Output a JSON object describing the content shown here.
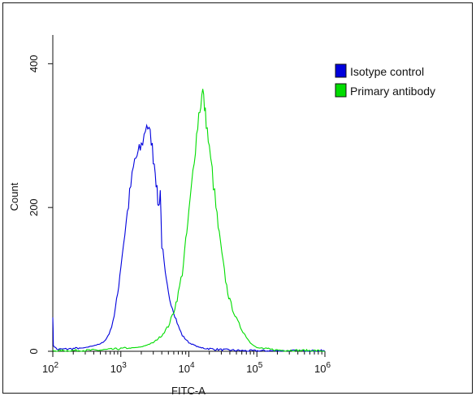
{
  "chart_data": {
    "type": "line",
    "title": "",
    "xlabel": "FITC-A",
    "ylabel": "Count",
    "x_scale": "log",
    "xlim": [
      100,
      1000000
    ],
    "ylim": [
      0,
      440
    ],
    "x_ticks": [
      {
        "value": 100,
        "base": "10",
        "exp": "2"
      },
      {
        "value": 1000,
        "base": "10",
        "exp": "3"
      },
      {
        "value": 10000,
        "base": "10",
        "exp": "4"
      },
      {
        "value": 100000,
        "base": "10",
        "exp": "5"
      },
      {
        "value": 1000000,
        "base": "10",
        "exp": "6"
      }
    ],
    "y_ticks": [
      {
        "value": 0,
        "label": "0"
      },
      {
        "value": 200,
        "label": "200"
      },
      {
        "value": 400,
        "label": "400"
      }
    ],
    "grid": false,
    "legend_position": "top-right",
    "series": [
      {
        "name": "Isotype control",
        "color": "#0000dd",
        "points": [
          [
            100,
            50
          ],
          [
            102,
            8
          ],
          [
            115,
            2
          ],
          [
            200,
            3
          ],
          [
            300,
            5
          ],
          [
            400,
            8
          ],
          [
            500,
            10
          ],
          [
            600,
            16
          ],
          [
            700,
            28
          ],
          [
            800,
            50
          ],
          [
            900,
            80
          ],
          [
            1000,
            120
          ],
          [
            1200,
            180
          ],
          [
            1400,
            230
          ],
          [
            1600,
            265
          ],
          [
            1800,
            275
          ],
          [
            2000,
            285
          ],
          [
            2200,
            300
          ],
          [
            2400,
            318
          ],
          [
            2600,
            305
          ],
          [
            2800,
            295
          ],
          [
            3000,
            270
          ],
          [
            3200,
            255
          ],
          [
            3400,
            220
          ],
          [
            3600,
            200
          ],
          [
            3800,
            225
          ],
          [
            4000,
            150
          ],
          [
            4500,
            105
          ],
          [
            5000,
            80
          ],
          [
            6000,
            55
          ],
          [
            7000,
            35
          ],
          [
            8000,
            22
          ],
          [
            10000,
            12
          ],
          [
            13000,
            7
          ],
          [
            16000,
            4
          ],
          [
            25000,
            2
          ],
          [
            40000,
            1
          ],
          [
            70000,
            0
          ],
          [
            200000,
            0
          ],
          [
            1000000,
            0
          ]
        ]
      },
      {
        "name": "Primary antibody",
        "color": "#00dd00",
        "points": [
          [
            100,
            0
          ],
          [
            500,
            1
          ],
          [
            1000,
            3
          ],
          [
            2000,
            6
          ],
          [
            3000,
            12
          ],
          [
            4000,
            22
          ],
          [
            5000,
            35
          ],
          [
            6000,
            55
          ],
          [
            7000,
            80
          ],
          [
            8000,
            110
          ],
          [
            9000,
            150
          ],
          [
            10000,
            190
          ],
          [
            11000,
            230
          ],
          [
            12000,
            270
          ],
          [
            13000,
            300
          ],
          [
            14000,
            330
          ],
          [
            15000,
            345
          ],
          [
            16000,
            362
          ],
          [
            17000,
            340
          ],
          [
            18000,
            320
          ],
          [
            20000,
            280
          ],
          [
            22000,
            250
          ],
          [
            25000,
            200
          ],
          [
            28000,
            160
          ],
          [
            32000,
            120
          ],
          [
            36000,
            90
          ],
          [
            40000,
            70
          ],
          [
            50000,
            45
          ],
          [
            60000,
            30
          ],
          [
            70000,
            20
          ],
          [
            80000,
            12
          ],
          [
            100000,
            5
          ],
          [
            130000,
            3
          ],
          [
            200000,
            1
          ],
          [
            1000000,
            0
          ]
        ]
      }
    ]
  }
}
